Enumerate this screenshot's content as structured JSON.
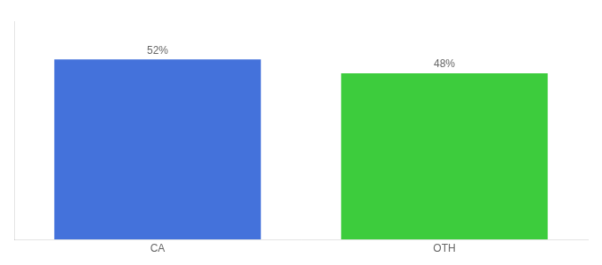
{
  "chart_data": {
    "type": "bar",
    "categories": [
      "CA",
      "OTH"
    ],
    "values": [
      52,
      48
    ],
    "value_labels": [
      "52%",
      "48%"
    ],
    "data_labels": true,
    "colors": [
      "#4472db",
      "#3dcc3d"
    ],
    "ylim": [
      0,
      63
    ],
    "grid": false,
    "tick_labels": "x"
  }
}
